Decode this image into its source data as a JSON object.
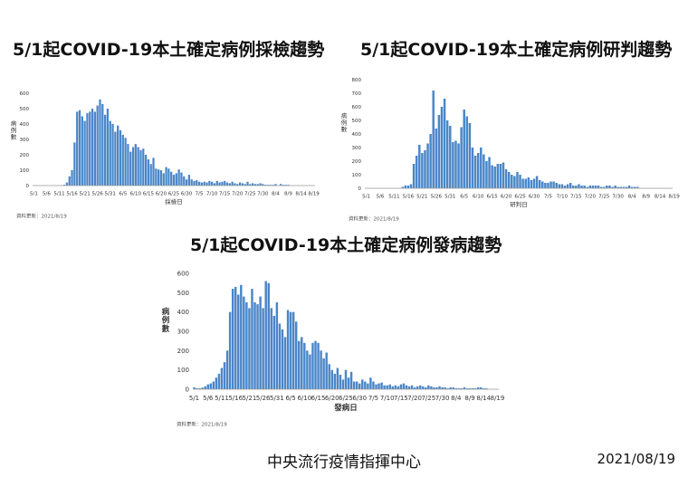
{
  "chart_data": [
    {
      "type": "bar",
      "title": "5/1起COVID-19本土確定病例採檢趨勢",
      "xlabel": "採檢日",
      "ylabel": "病例數",
      "source_note": "資料更新：2021/8/19",
      "ylim": [
        0,
        600
      ],
      "y_ticks": [
        "0",
        "100",
        "200",
        "300",
        "400",
        "500",
        "600"
      ],
      "x_tick_labels": [
        "5/1",
        "5/6",
        "5/11",
        "5/16",
        "5/21",
        "5/26",
        "5/31",
        "6/5",
        "6/10",
        "6/15",
        "6/20",
        "6/25",
        "6/30",
        "7/5",
        "7/10",
        "7/15",
        "7/20",
        "7/25",
        "7/30",
        "8/4",
        "8/9",
        "8/14",
        "8/19"
      ],
      "color": "#4a86c8",
      "values": [
        0,
        0,
        0,
        0,
        0,
        0,
        0,
        0,
        0,
        0,
        0,
        2,
        5,
        20,
        60,
        100,
        280,
        480,
        490,
        450,
        420,
        470,
        480,
        500,
        480,
        520,
        560,
        530,
        460,
        500,
        420,
        400,
        350,
        390,
        360,
        330,
        310,
        270,
        220,
        250,
        270,
        250,
        230,
        240,
        200,
        170,
        140,
        180,
        110,
        105,
        100,
        80,
        120,
        110,
        90,
        70,
        80,
        105,
        85,
        60,
        40,
        70,
        40,
        30,
        35,
        25,
        20,
        25,
        20,
        30,
        25,
        15,
        30,
        20,
        25,
        30,
        20,
        15,
        25,
        15,
        10,
        20,
        15,
        10,
        25,
        10,
        15,
        10,
        10,
        15,
        10,
        5,
        5,
        5,
        5,
        10,
        0,
        10,
        5,
        5,
        5,
        0,
        0,
        0,
        0,
        0,
        0,
        0,
        0,
        0,
        0
      ]
    },
    {
      "type": "bar",
      "title": "5/1起COVID-19本土確定病例研判趨勢",
      "xlabel": "研判日",
      "ylabel": "病例數",
      "source_note": "資料更新：2021/8/19",
      "ylim": [
        0,
        800
      ],
      "y_ticks": [
        "0",
        "100",
        "200",
        "300",
        "400",
        "500",
        "600",
        "700",
        "800"
      ],
      "x_tick_labels": [
        "5/1",
        "5/6",
        "5/11",
        "5/16",
        "5/21",
        "5/26",
        "5/31",
        "6/5",
        "6/10",
        "6/15",
        "6/20",
        "6/25",
        "6/30",
        "7/5",
        "7/10",
        "7/15",
        "7/20",
        "7/25",
        "7/30",
        "8/4",
        "8/9",
        "8/14",
        "8/19"
      ],
      "color": "#4a86c8",
      "values": [
        0,
        0,
        0,
        0,
        0,
        0,
        0,
        0,
        0,
        0,
        0,
        0,
        0,
        10,
        20,
        20,
        30,
        180,
        240,
        320,
        260,
        280,
        330,
        400,
        720,
        440,
        540,
        600,
        660,
        500,
        460,
        340,
        350,
        330,
        450,
        580,
        530,
        480,
        300,
        240,
        260,
        300,
        250,
        200,
        230,
        170,
        160,
        180,
        180,
        190,
        140,
        120,
        100,
        90,
        120,
        100,
        70,
        70,
        80,
        60,
        70,
        90,
        60,
        50,
        40,
        40,
        50,
        50,
        40,
        30,
        30,
        20,
        30,
        40,
        20,
        20,
        30,
        20,
        20,
        10,
        20,
        20,
        20,
        20,
        10,
        10,
        20,
        20,
        10,
        20,
        10,
        10,
        10,
        10,
        20,
        10,
        10,
        10,
        0,
        0,
        0,
        0,
        0,
        0,
        0,
        0,
        0,
        0,
        0,
        0
      ]
    },
    {
      "type": "bar",
      "title": "5/1起COVID-19本土確定病例發病趨勢",
      "xlabel": "發病日",
      "ylabel": "病例數",
      "source_note": "資料更新：2021/8/19",
      "ylim": [
        0,
        600
      ],
      "y_ticks": [
        "0",
        "100",
        "200",
        "300",
        "400",
        "500",
        "600"
      ],
      "x_tick_labels": [
        "5/1",
        "5/6",
        "5/11",
        "5/16",
        "5/21",
        "5/26",
        "5/31",
        "6/5",
        "6/10",
        "6/15",
        "6/20",
        "6/25",
        "6/30",
        "7/5",
        "7/10",
        "7/15",
        "7/20",
        "7/25",
        "7/30",
        "8/4",
        "8/9",
        "8/14",
        "8/19"
      ],
      "color": "#4a86c8",
      "values": [
        10,
        5,
        5,
        8,
        15,
        25,
        30,
        40,
        60,
        80,
        110,
        140,
        200,
        400,
        520,
        530,
        490,
        540,
        480,
        450,
        420,
        520,
        450,
        440,
        480,
        420,
        560,
        550,
        420,
        380,
        450,
        340,
        310,
        270,
        410,
        400,
        400,
        350,
        250,
        270,
        240,
        200,
        180,
        240,
        250,
        240,
        200,
        160,
        190,
        130,
        100,
        80,
        110,
        75,
        50,
        100,
        60,
        90,
        40,
        40,
        30,
        50,
        40,
        30,
        60,
        40,
        25,
        30,
        35,
        20,
        20,
        25,
        15,
        20,
        15,
        25,
        30,
        20,
        15,
        20,
        10,
        15,
        20,
        15,
        10,
        20,
        15,
        10,
        10,
        15,
        10,
        10,
        5,
        10,
        10,
        5,
        5,
        5,
        10,
        5,
        5,
        5,
        5,
        10,
        10,
        5,
        5,
        0,
        0,
        0,
        0
      ]
    }
  ],
  "footer": {
    "organization": "中央流行疫情指揮中心",
    "date": "2021/08/19"
  }
}
